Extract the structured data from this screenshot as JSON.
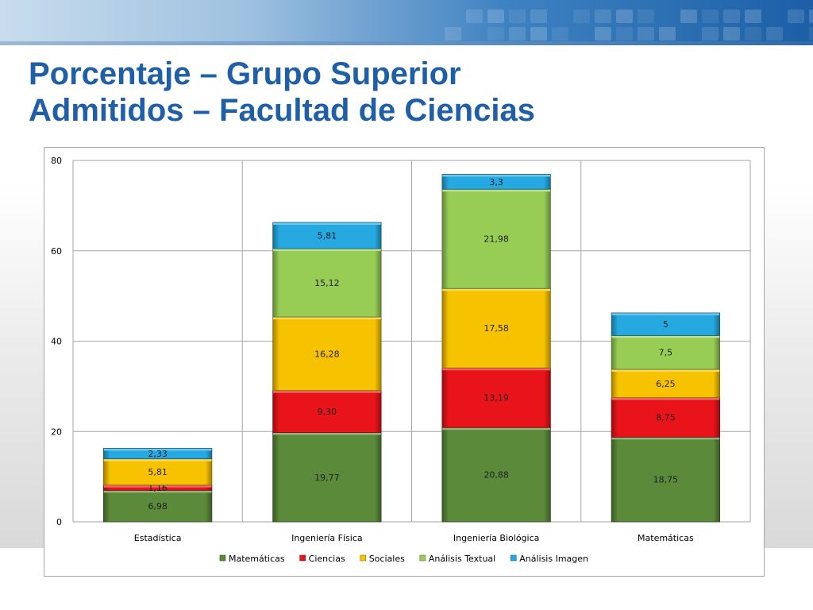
{
  "slide": {
    "title_line1": "Porcentaje – Grupo Superior",
    "title_line2": "Admitidos – Facultad de Ciencias"
  },
  "colors": {
    "title": "#1f5fa8",
    "series": [
      "#5b8a3a",
      "#e8141a",
      "#f7c300",
      "#98cd55",
      "#25a9e0"
    ]
  },
  "chart_data": {
    "type": "bar",
    "stacked": true,
    "categories": [
      "Estadística",
      "Ingeniería Física",
      "Ingeniería Biológica",
      "Matemáticas"
    ],
    "series": [
      {
        "name": "Matemáticas",
        "values": [
          6.98,
          19.77,
          20.88,
          18.75
        ],
        "labels": [
          "6,98",
          "19,77",
          "20,88",
          "18,75"
        ]
      },
      {
        "name": "Ciencias",
        "values": [
          1.16,
          9.3,
          13.19,
          8.75
        ],
        "labels": [
          "1,16",
          "9,30",
          "13,19",
          "8,75"
        ]
      },
      {
        "name": "Sociales",
        "values": [
          5.81,
          16.28,
          17.58,
          6.25
        ],
        "labels": [
          "5,81",
          "16,28",
          "17,58",
          "6,25"
        ]
      },
      {
        "name": "Análisis Textual",
        "values": [
          0,
          15.12,
          21.98,
          7.5
        ],
        "labels": [
          "",
          "15,12",
          "21,98",
          "7,5"
        ]
      },
      {
        "name": "Análisis Imagen",
        "values": [
          2.33,
          5.81,
          3.3,
          5
        ],
        "labels": [
          "2,33",
          "5,81",
          "3,3",
          "5"
        ]
      }
    ],
    "ylim": [
      0,
      80
    ],
    "yticks": [
      "0",
      "20",
      "40",
      "60",
      "80"
    ],
    "grid": true,
    "legend": "bottom"
  }
}
